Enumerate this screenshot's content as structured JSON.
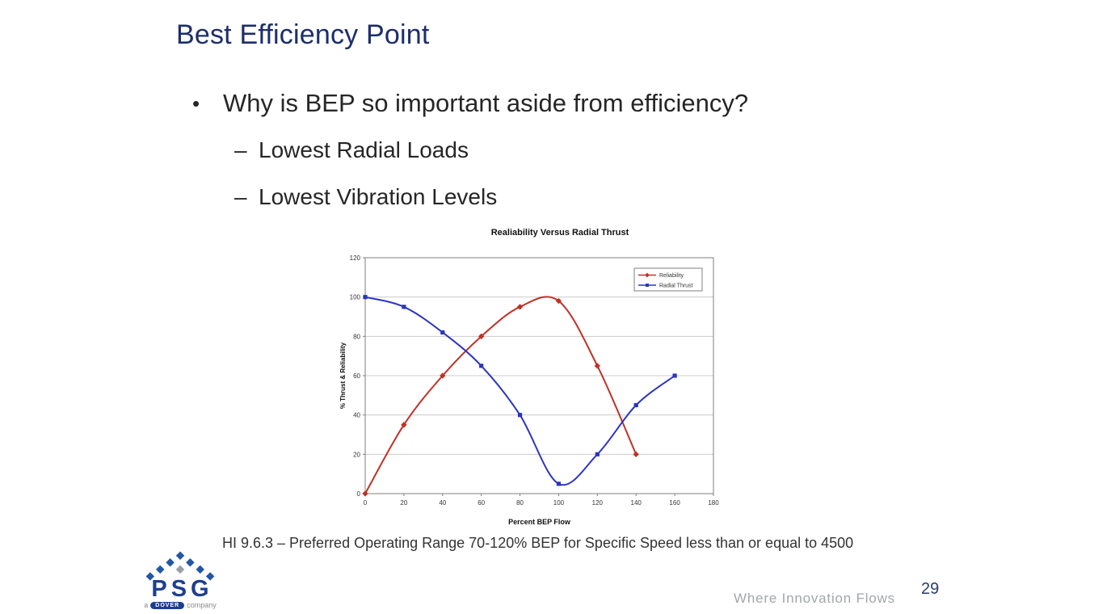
{
  "slide": {
    "title": "Best Efficiency Point",
    "bullet_char": "•",
    "dash_char": "–",
    "bullet": "Why is BEP so important aside from efficiency?",
    "sub_bullets": [
      "Lowest Radial Loads",
      "Lowest Vibration Levels"
    ],
    "footnote": "HI 9.6.3 – Preferred Operating Range 70-120% BEP for Specific Speed less than or equal to 4500",
    "tagline": "Where Innovation Flows",
    "page_number": "29",
    "logo": {
      "brand": "PSG",
      "sub_prefix": "a",
      "sub_badge": "DOVER",
      "sub_suffix": "company"
    },
    "colors": {
      "title_navy": "#1c2e6b",
      "body_text": "#262626",
      "logo_blue": "#2257a4",
      "logo_gray": "#9aa0a6",
      "tagline_gray": "#a3a7aa"
    }
  },
  "chart_data": {
    "type": "line",
    "title": "Realiability Versus Radial Thrust",
    "xlabel": "Percent BEP Flow",
    "ylabel": "% Thrust & Reliability",
    "xlim": [
      0,
      180
    ],
    "ylim": [
      0,
      120
    ],
    "xticks": [
      0,
      20,
      40,
      60,
      80,
      100,
      120,
      140,
      160,
      180
    ],
    "yticks": [
      0,
      20,
      40,
      60,
      80,
      100,
      120
    ],
    "grid": "horizontal",
    "legend_position": "top-right",
    "series": [
      {
        "name": "Reliability",
        "color": "#bf3226",
        "marker": "diamond",
        "points": [
          [
            0,
            0
          ],
          [
            20,
            35
          ],
          [
            40,
            60
          ],
          [
            60,
            80
          ],
          [
            80,
            95
          ],
          [
            100,
            98
          ],
          [
            120,
            65
          ],
          [
            140,
            20
          ]
        ]
      },
      {
        "name": "Radial Thrust",
        "color": "#2b35c0",
        "marker": "square",
        "points": [
          [
            0,
            100
          ],
          [
            20,
            95
          ],
          [
            40,
            82
          ],
          [
            60,
            65
          ],
          [
            80,
            40
          ],
          [
            100,
            5
          ],
          [
            120,
            20
          ],
          [
            140,
            45
          ],
          [
            160,
            60
          ]
        ]
      }
    ]
  }
}
